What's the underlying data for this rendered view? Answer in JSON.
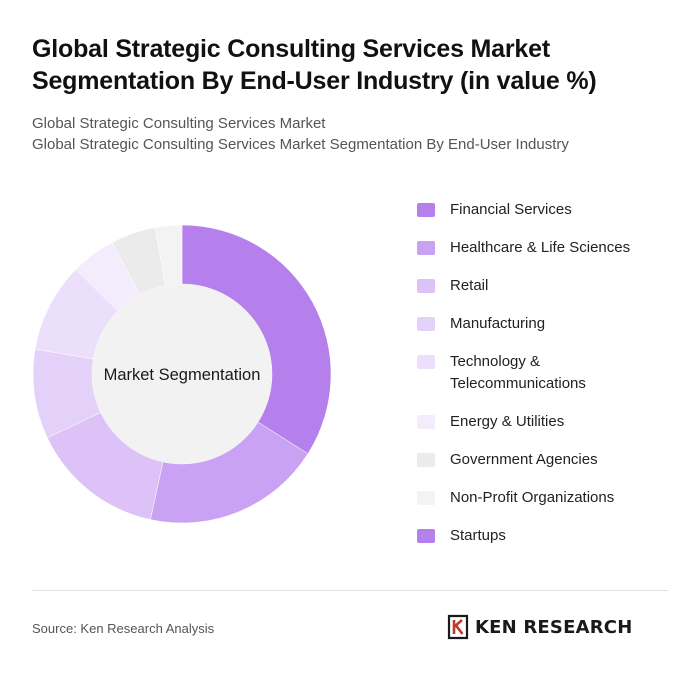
{
  "header": {
    "title": "Global Strategic Consulting Services Market Segmentation By End-User Industry (in value %)",
    "subtitle_line1": "Global Strategic Consulting Services Market",
    "subtitle_line2": "Global Strategic Consulting Services Market Segmentation By End-User Industry"
  },
  "chart_data": {
    "type": "pie",
    "variant": "donut",
    "center_label": "Market Segmentation",
    "legend_position": "right",
    "slices": [
      {
        "label": "Financial Services",
        "value": 35,
        "color": "#b57fec"
      },
      {
        "label": "Healthcare & Life Sciences",
        "value": 20,
        "color": "#c9a2f3"
      },
      {
        "label": "Retail",
        "value": 15,
        "color": "#dcc2f7"
      },
      {
        "label": "Manufacturing",
        "value": 10,
        "color": "#e4d1f9"
      },
      {
        "label": "Technology & Telecommunications",
        "value": 10,
        "color": "#ecdffb"
      },
      {
        "label": "Energy & Utilities",
        "value": 5,
        "color": "#f2ecfc"
      },
      {
        "label": "Government Agencies",
        "value": 5,
        "color": "#ebebeb"
      },
      {
        "label": "Non-Profit Organizations",
        "value": 3,
        "color": "#f3f3f3"
      },
      {
        "label": "Startups",
        "value": 0,
        "color": "#b57fec"
      }
    ]
  },
  "footer": {
    "source": "Source: Ken Research Analysis",
    "brand": "KEN RESEARCH",
    "brand_logo": "ken-research-k-logo"
  }
}
